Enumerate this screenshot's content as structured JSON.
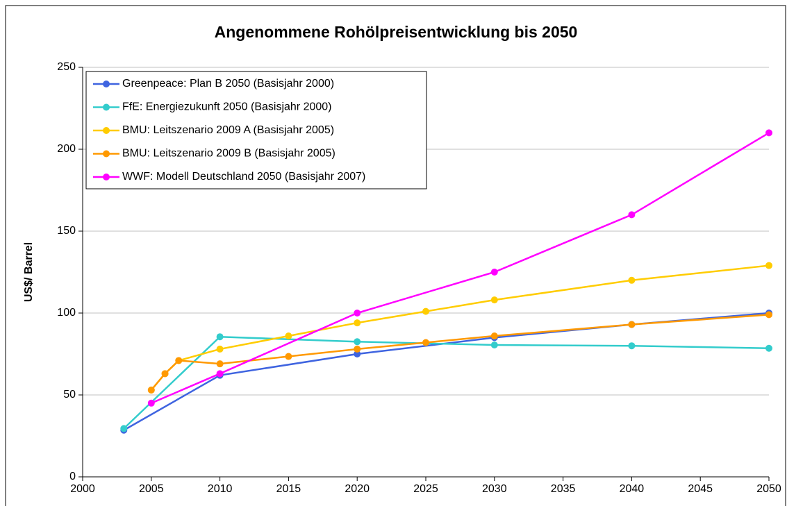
{
  "chart_data": {
    "type": "line",
    "title": "Angenommene Rohölpreisentwicklung bis 2050",
    "ylabel": "US$/ Barrel",
    "xlim": [
      2000,
      2050
    ],
    "xticks": [
      2000,
      2005,
      2010,
      2015,
      2020,
      2025,
      2030,
      2035,
      2040,
      2045,
      2050
    ],
    "ylim": [
      0,
      250
    ],
    "yticks": [
      0,
      50,
      100,
      150,
      200,
      250
    ],
    "grid": true,
    "legend": "upper left",
    "series": [
      {
        "name": "Greenpeace: Plan B 2050 (Basisjahr 2000)",
        "color": "#3f64e0",
        "x": [
          2003,
          2010,
          2020,
          2030,
          2040,
          2050
        ],
        "values": [
          28.5,
          62,
          75,
          85,
          93,
          100
        ]
      },
      {
        "name": "FfE: Energiezukunft 2050 (Basisjahr 2000)",
        "color": "#33cccc",
        "x": [
          2003,
          2010,
          2020,
          2030,
          2040,
          2050
        ],
        "values": [
          29.5,
          85.5,
          82.5,
          80.5,
          80,
          78.5
        ]
      },
      {
        "name": "BMU: Leitszenario 2009 A (Basisjahr 2005)",
        "color": "#ffcc00",
        "x": [
          2005,
          2006,
          2007,
          2010,
          2015,
          2020,
          2025,
          2030,
          2040,
          2050
        ],
        "values": [
          53,
          63,
          71,
          78,
          86,
          94,
          101,
          108,
          120,
          129
        ]
      },
      {
        "name": "BMU: Leitszenario 2009 B (Basisjahr 2005)",
        "color": "#ff9900",
        "x": [
          2005,
          2006,
          2007,
          2010,
          2015,
          2020,
          2025,
          2030,
          2040,
          2050
        ],
        "values": [
          53,
          63,
          71,
          69,
          73.5,
          78,
          82,
          86,
          93,
          99
        ]
      },
      {
        "name": "WWF: Modell Deutschland 2050 (Basisjahr 2007)",
        "color": "#ff00ff",
        "x": [
          2005,
          2010,
          2020,
          2030,
          2040,
          2050
        ],
        "values": [
          45,
          63,
          100,
          125,
          160,
          210
        ]
      }
    ]
  }
}
